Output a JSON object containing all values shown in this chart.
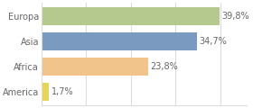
{
  "categories": [
    "Europa",
    "Asia",
    "Africa",
    "America"
  ],
  "values": [
    39.8,
    34.7,
    23.8,
    1.7
  ],
  "labels": [
    "39,8%",
    "34,7%",
    "23,8%",
    "1,7%"
  ],
  "bar_colors": [
    "#b5c98e",
    "#7a9bbf",
    "#f0c48a",
    "#e8d55a"
  ],
  "background_color": "#ffffff",
  "xlim": [
    0,
    46
  ],
  "bar_height": 0.72,
  "label_fontsize": 7.0,
  "category_fontsize": 7.0,
  "label_color": "#666666",
  "grid_color": "#dddddd"
}
